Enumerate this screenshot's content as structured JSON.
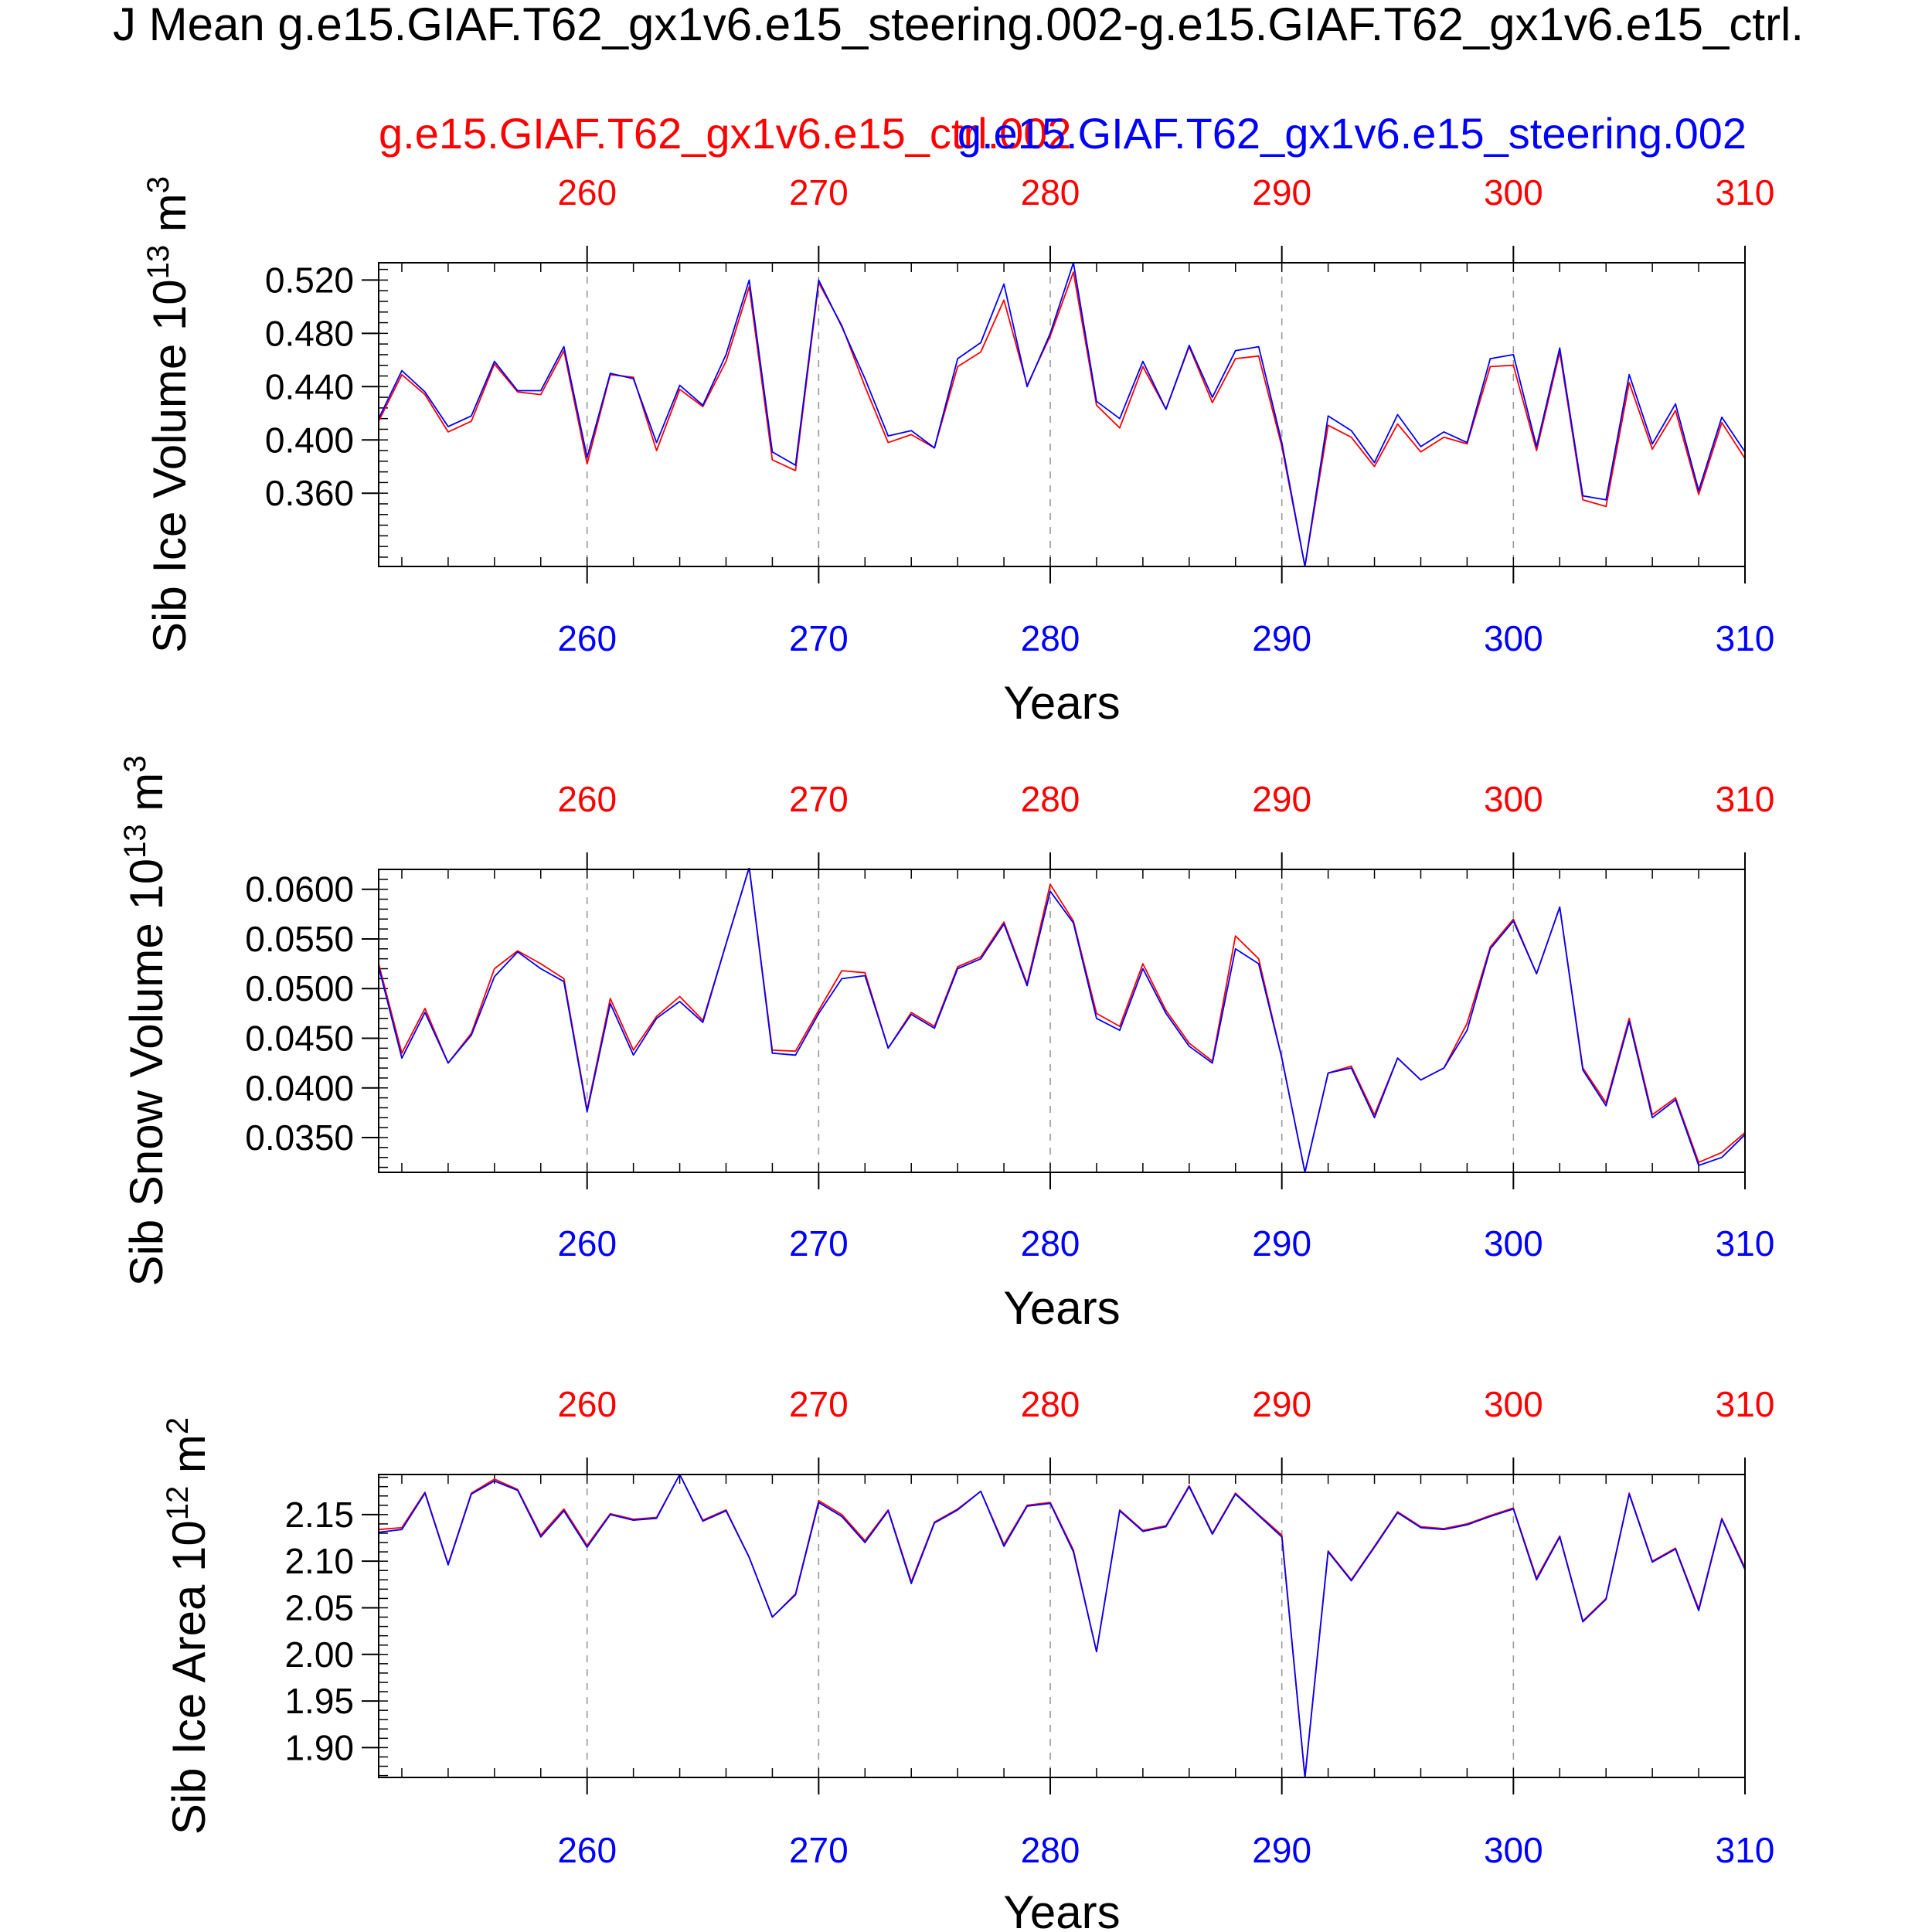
{
  "figure": {
    "title": "J Mean g.e15.GIAF.T62_gx1v6.e15_steering.002-g.e15.GIAF.T62_gx1v6.e15_ctrl.",
    "legend_ctrl": "g.e15.GIAF.T62_gx1v6.e15_ctrl.002",
    "legend_steering": "g.e15.GIAF.T62_gx1v6.e15_steering.002",
    "colors": {
      "ctrl": "#ff0000",
      "steering": "#0000ff",
      "text": "#000000",
      "grid": "#999999",
      "frame": "#000000"
    }
  },
  "chart_data": [
    {
      "type": "line",
      "ylabel_main": "Sib Ice Volume 10",
      "ylabel_exp": "13",
      "ylabel_unit": " m",
      "ylabel_unit_exp": "3",
      "xlabel": "Years",
      "xlim": [
        251,
        310
      ],
      "ylim": [
        0.305,
        0.533
      ],
      "ytick_labels": [
        "0.520",
        "0.480",
        "0.440",
        "0.400",
        "0.360"
      ],
      "ytick_values": [
        0.52,
        0.48,
        0.44,
        0.4,
        0.36
      ],
      "yminor_step": 0.008,
      "xtick_labels": [
        "260",
        "270",
        "280",
        "290",
        "300",
        "310"
      ],
      "xtick_values": [
        260,
        270,
        280,
        290,
        300,
        310
      ],
      "xminor_step": 2,
      "grid": "dashed vertical at major x ticks",
      "x": [
        251,
        252,
        253,
        254,
        255,
        256,
        257,
        258,
        259,
        260,
        261,
        262,
        263,
        264,
        265,
        266,
        267,
        268,
        269,
        270,
        271,
        272,
        273,
        274,
        275,
        276,
        277,
        278,
        279,
        280,
        281,
        282,
        283,
        284,
        285,
        286,
        287,
        288,
        289,
        290,
        291,
        292,
        293,
        294,
        295,
        296,
        297,
        298,
        299,
        300,
        301,
        302,
        303,
        304,
        305,
        306,
        307,
        308,
        309,
        310
      ],
      "series": [
        {
          "name": "g.e15.GIAF.T62_gx1v6.e15_ctrl.002",
          "color": "#ff0000",
          "values": [
            0.414,
            0.449,
            0.434,
            0.406,
            0.414,
            0.457,
            0.436,
            0.434,
            0.467,
            0.382,
            0.449,
            0.447,
            0.392,
            0.438,
            0.425,
            0.459,
            0.515,
            0.385,
            0.377,
            0.518,
            0.486,
            0.44,
            0.398,
            0.404,
            0.394,
            0.455,
            0.466,
            0.505,
            0.441,
            0.478,
            0.526,
            0.426,
            0.409,
            0.455,
            0.423,
            0.47,
            0.428,
            0.461,
            0.463,
            0.395,
            0.305,
            0.411,
            0.402,
            0.38,
            0.412,
            0.391,
            0.402,
            0.397,
            0.455,
            0.456,
            0.392,
            0.466,
            0.355,
            0.35,
            0.443,
            0.393,
            0.422,
            0.359,
            0.413,
            0.386
          ]
        },
        {
          "name": "g.e15.GIAF.T62_gx1v6.e15_steering.002",
          "color": "#0000ff",
          "values": [
            0.416,
            0.452,
            0.436,
            0.41,
            0.418,
            0.459,
            0.437,
            0.437,
            0.47,
            0.387,
            0.45,
            0.446,
            0.398,
            0.441,
            0.426,
            0.464,
            0.52,
            0.391,
            0.381,
            0.52,
            0.485,
            0.446,
            0.403,
            0.407,
            0.394,
            0.461,
            0.473,
            0.517,
            0.44,
            0.48,
            0.533,
            0.429,
            0.416,
            0.459,
            0.423,
            0.471,
            0.432,
            0.467,
            0.47,
            0.398,
            0.305,
            0.418,
            0.407,
            0.383,
            0.419,
            0.395,
            0.406,
            0.398,
            0.461,
            0.464,
            0.395,
            0.469,
            0.358,
            0.355,
            0.449,
            0.397,
            0.427,
            0.362,
            0.417,
            0.391
          ]
        }
      ]
    },
    {
      "type": "line",
      "ylabel_main": "Sib Snow Volume 10",
      "ylabel_exp": "13",
      "ylabel_unit": " m",
      "ylabel_unit_exp": "3",
      "xlabel": "Years",
      "xlim": [
        251,
        310
      ],
      "ylim": [
        0.0315,
        0.062
      ],
      "ytick_labels": [
        "0.0600",
        "0.0550",
        "0.0500",
        "0.0450",
        "0.0400",
        "0.0350"
      ],
      "ytick_values": [
        0.06,
        0.055,
        0.05,
        0.045,
        0.04,
        0.035
      ],
      "yminor_step": 0.001,
      "xtick_labels": [
        "260",
        "270",
        "280",
        "290",
        "300",
        "310"
      ],
      "xtick_values": [
        260,
        270,
        280,
        290,
        300,
        310
      ],
      "xminor_step": 2,
      "grid": "dashed vertical at major x ticks",
      "x": [
        251,
        252,
        253,
        254,
        255,
        256,
        257,
        258,
        259,
        260,
        261,
        262,
        263,
        264,
        265,
        266,
        267,
        268,
        269,
        270,
        271,
        272,
        273,
        274,
        275,
        276,
        277,
        278,
        279,
        280,
        281,
        282,
        283,
        284,
        285,
        286,
        287,
        288,
        289,
        290,
        291,
        292,
        293,
        294,
        295,
        296,
        297,
        298,
        299,
        300,
        301,
        302,
        303,
        304,
        305,
        306,
        307,
        308,
        309,
        310
      ],
      "series": [
        {
          "name": "g.e15.GIAF.T62_gx1v6.e15_ctrl.002",
          "color": "#ff0000",
          "values": [
            0.0525,
            0.0435,
            0.048,
            0.0425,
            0.0455,
            0.052,
            0.0538,
            0.0525,
            0.051,
            0.0378,
            0.049,
            0.0438,
            0.0472,
            0.0492,
            0.0468,
            0.0545,
            0.0622,
            0.0438,
            0.0437,
            0.0478,
            0.0518,
            0.0516,
            0.044,
            0.0476,
            0.0462,
            0.0522,
            0.0532,
            0.0567,
            0.0505,
            0.0605,
            0.0568,
            0.0475,
            0.0462,
            0.0525,
            0.0478,
            0.0445,
            0.0427,
            0.0553,
            0.053,
            0.043,
            0.0315,
            0.0415,
            0.0422,
            0.0373,
            0.043,
            0.0408,
            0.042,
            0.0465,
            0.0542,
            0.057,
            0.0515,
            0.0582,
            0.042,
            0.0385,
            0.047,
            0.0373,
            0.039,
            0.0325,
            0.0335,
            0.0355
          ]
        },
        {
          "name": "g.e15.GIAF.T62_gx1v6.e15_steering.002",
          "color": "#0000ff",
          "values": [
            0.0522,
            0.043,
            0.0476,
            0.0425,
            0.0453,
            0.0512,
            0.0537,
            0.052,
            0.0507,
            0.0376,
            0.0485,
            0.0433,
            0.047,
            0.0487,
            0.0466,
            0.0545,
            0.0622,
            0.0435,
            0.0433,
            0.0475,
            0.051,
            0.0513,
            0.044,
            0.0474,
            0.046,
            0.052,
            0.053,
            0.0565,
            0.0503,
            0.0598,
            0.0566,
            0.047,
            0.0458,
            0.052,
            0.0475,
            0.0442,
            0.0425,
            0.054,
            0.0525,
            0.043,
            0.0315,
            0.0415,
            0.042,
            0.037,
            0.043,
            0.0408,
            0.042,
            0.0458,
            0.054,
            0.0568,
            0.0515,
            0.0582,
            0.0418,
            0.0382,
            0.0467,
            0.037,
            0.0388,
            0.0322,
            0.033,
            0.0353
          ]
        }
      ]
    },
    {
      "type": "line",
      "ylabel_main": "Sib Ice Area 10",
      "ylabel_exp": "12",
      "ylabel_unit": " m",
      "ylabel_unit_exp": "2",
      "xlabel": "Years",
      "xlim": [
        251,
        310
      ],
      "ylim": [
        1.868,
        2.193
      ],
      "ytick_labels": [
        "2.15",
        "2.10",
        "2.05",
        "2.00",
        "1.95",
        "1.90"
      ],
      "ytick_values": [
        2.15,
        2.1,
        2.05,
        2.0,
        1.95,
        1.9
      ],
      "yminor_step": 0.01,
      "xtick_labels": [
        "260",
        "270",
        "280",
        "290",
        "300",
        "310"
      ],
      "xtick_values": [
        260,
        270,
        280,
        290,
        300,
        310
      ],
      "xminor_step": 2,
      "grid": "dashed vertical at major x ticks",
      "x": [
        251,
        252,
        253,
        254,
        255,
        256,
        257,
        258,
        259,
        260,
        261,
        262,
        263,
        264,
        265,
        266,
        267,
        268,
        269,
        270,
        271,
        272,
        273,
        274,
        275,
        276,
        277,
        278,
        279,
        280,
        281,
        282,
        283,
        284,
        285,
        286,
        287,
        288,
        289,
        290,
        291,
        292,
        293,
        294,
        295,
        296,
        297,
        298,
        299,
        300,
        301,
        302,
        303,
        304,
        305,
        306,
        307,
        308,
        309,
        310
      ],
      "series": [
        {
          "name": "g.e15.GIAF.T62_gx1v6.e15_ctrl.002",
          "color": "#ff0000",
          "values": [
            2.134,
            2.136,
            2.174,
            2.097,
            2.173,
            2.188,
            2.177,
            2.128,
            2.156,
            2.117,
            2.151,
            2.145,
            2.147,
            2.193,
            2.144,
            2.155,
            2.104,
            2.04,
            2.065,
            2.165,
            2.15,
            2.122,
            2.155,
            2.078,
            2.142,
            2.156,
            2.175,
            2.118,
            2.16,
            2.163,
            2.112,
            2.003,
            2.155,
            2.133,
            2.138,
            2.181,
            2.13,
            2.173,
            2.15,
            2.128,
            1.868,
            2.111,
            2.08,
            2.116,
            2.153,
            2.137,
            2.135,
            2.14,
            2.149,
            2.157,
            2.082,
            2.127,
            2.036,
            2.06,
            2.173,
            2.1,
            2.114,
            2.049,
            2.146,
            2.093
          ]
        },
        {
          "name": "g.e15.GIAF.T62_gx1v6.e15_steering.002",
          "color": "#0000ff",
          "values": [
            2.131,
            2.134,
            2.173,
            2.096,
            2.172,
            2.186,
            2.176,
            2.126,
            2.154,
            2.115,
            2.15,
            2.144,
            2.146,
            2.193,
            2.143,
            2.154,
            2.104,
            2.04,
            2.064,
            2.163,
            2.148,
            2.12,
            2.154,
            2.076,
            2.141,
            2.155,
            2.175,
            2.116,
            2.159,
            2.162,
            2.11,
            2.003,
            2.154,
            2.132,
            2.137,
            2.18,
            2.129,
            2.172,
            2.149,
            2.126,
            1.868,
            2.11,
            2.079,
            2.115,
            2.152,
            2.136,
            2.134,
            2.139,
            2.148,
            2.156,
            2.08,
            2.126,
            2.035,
            2.059,
            2.172,
            2.099,
            2.113,
            2.047,
            2.145,
            2.091
          ]
        }
      ]
    }
  ]
}
